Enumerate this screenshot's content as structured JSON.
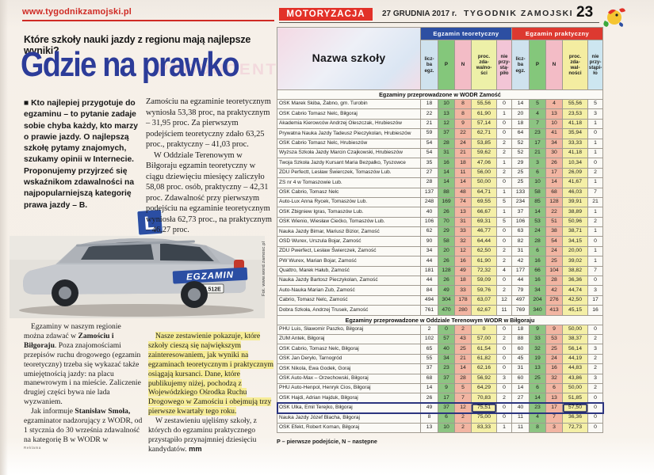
{
  "page": {
    "url": "www.tygodnikzamojski.pl",
    "section_label": "MOTORYZACJA",
    "date_line": "27 GRUDNIA 2017 r.",
    "paper_name": "TYGODNIK ZAMOJSKI",
    "page_number": "23"
  },
  "colors": {
    "accent_red": "#e23128",
    "headline_blue": "#2c3c99",
    "theory_header_blue": "#2d4fa2",
    "practical_header_red": "#dd3930",
    "cell_green": "#8cc482",
    "cell_salmon": "#f2b5a2",
    "cell_yellow": "#f4efa6",
    "highlight_outline": "#2c357f",
    "marker_yellow": "#f6ec96"
  },
  "article": {
    "kicker": "Które szkoły nauki jazdy z regionu mają najlepsze wyniki?",
    "headline": "Gdzie na prawko",
    "ghost_text": "PRODUCENT",
    "intro": "■ Kto najlepiej przygotuje do egzaminu – to pytanie zadaje sobie chyba każdy, kto marzy o prawie jazdy. O najlepszą szkołę pytamy znajomych, szukamy opinii w Internecie. Proponujemy przyjrzeć się wskaźnikom zdawalności na najpopularniejszą kategorię prawa jazdy – B.",
    "col2_p1": "Zamościu na egzaminie teoretycznym wyniosła 53,38 proc, na praktycznym – 31,95 proc. Za pierwszym podejściem teoretyczny zdało 63,25 proc., praktyczny – 41,03 proc.",
    "col2_p2": "W Oddziale Terenowym w Biłgoraju egzamin teoretyczny w ciągu dziewięciu miesięcy zaliczyło 58,08 proc. osób, praktyczny – 42,31 proc. Zdawalność przy pierwszym podejściu na egzaminie teoretycznym wyniosła 62,73 proc., na praktycznym – 46,27 proc.",
    "photo": {
      "egzamin_label": "EGZAMIN",
      "l_sign": "L",
      "plate": "LU 512E",
      "credit": "Fot. www.word.zamosc.pl"
    },
    "col3_p1_pre": "Egzaminy w naszym regionie można zdawać w ",
    "col3_p1_bold": "Zamościu i Biłgoraju",
    "col3_p1_post": ". Poza znajomościami przepisów ruchu drogowego (egzamin teoretyczny) trzeba się wykazać także umiejętnością jazdy: na placu manewrowym i na mieście. Zaliczenie drugiej części bywa nie lada wyzwaniem.",
    "col3_p2_pre": "Jak informuje ",
    "col3_p2_bold": "Stanisław Smoła,",
    "col3_p2_post": " egzaminator nadzorujący z WODR, od 1 stycznia do 30 września zdawalność na kategorię B w WODR w",
    "col4_p1": "Nasze zestawienie pokazuje, które szkoły cieszą się największym zainteresowaniem, jak wyniki na egzaminach teoretycznym i praktycznym osiągają kursanci. Dane, które publikujemy niżej, pochodzą z Wojewódzkiego Ośrodka Ruchu Drogowego w Zamościu i obejmują trzy pierwsze kwartały tego roku.",
    "col4_p2": "W zestawieniu ujęliśmy szkoły, z których do egzaminu praktycznego przystąpiło przynajmniej dziesięciu kandydatów. ",
    "byline": "mm",
    "reklama_label": "Reklama"
  },
  "table": {
    "name_header": "Nazwa szkoły",
    "group_theory": "Egzamin teoretyczny",
    "group_practical": "Egzamin praktyczny",
    "cols_t": [
      "licz-\nba\negz.",
      "P",
      "N",
      "proc.\nzda-\nwalno-\nści",
      "nie\nprzy-\nstą-\npiło"
    ],
    "cols_p": [
      "licz-\nba\negz.",
      "P",
      "N",
      "proc.\nzda-\nwal-\nności",
      "nie\nprzy-\nstąpi-\nło"
    ],
    "footnote": "P – pierwsze podejście, N – następne",
    "sections": [
      {
        "title": "Egzaminy przeprowadzone w WODR Zamość",
        "rows": [
          {
            "name": "OSK Marek Skiba, Żabno, gm. Turobin",
            "values": [
              "18",
              "10",
              "8",
              "55,56",
              "0",
              "14",
              "5",
              "4",
              "55,56",
              "5"
            ]
          },
          {
            "name": "OSK Cabrio Tomasz Nelc, Biłgoraj",
            "values": [
              "22",
              "13",
              "8",
              "61,90",
              "1",
              "20",
              "4",
              "13",
              "23,53",
              "3"
            ]
          },
          {
            "name": "Akademia Kierowców Andrzej Oleszczak, Hrubieszów",
            "values": [
              "21",
              "12",
              "9",
              "57,14",
              "0",
              "18",
              "7",
              "10",
              "41,18",
              "1"
            ]
          },
          {
            "name": "Prywatna Nauka Jazdy Tadeusz Pieczykolan, Hrubieszów",
            "values": [
              "59",
              "37",
              "22",
              "62,71",
              "0",
              "64",
              "23",
              "41",
              "35,94",
              "0"
            ]
          },
          {
            "name": "OSK Cabrio Tomasz Nelc, Hrubieszów",
            "values": [
              "54",
              "28",
              "24",
              "53,85",
              "2",
              "52",
              "17",
              "34",
              "33,33",
              "1"
            ]
          },
          {
            "name": "Wyższa Szkoła Jazdy Marcin Czajkowski, Hrubieszów",
            "values": [
              "54",
              "31",
              "21",
              "59,62",
              "2",
              "52",
              "21",
              "30",
              "41,18",
              "1"
            ]
          },
          {
            "name": "Twoja Szkoła Jazdy Kursant Maria Bezpalko, Tyszowce",
            "values": [
              "35",
              "16",
              "18",
              "47,06",
              "1",
              "29",
              "3",
              "26",
              "10,34",
              "0"
            ]
          },
          {
            "name": "ZDU Perfectt, Lesław Świerczek, Tomaszów Lub.",
            "values": [
              "27",
              "14",
              "11",
              "56,00",
              "2",
              "25",
              "6",
              "17",
              "26,09",
              "2"
            ]
          },
          {
            "name": "ZS nr 4 w Tomaszowie Lub.",
            "values": [
              "28",
              "14",
              "14",
              "50,00",
              "0",
              "25",
              "10",
              "14",
              "41,67",
              "1"
            ]
          },
          {
            "name": "OSK Cabrio, Tomasz Nelc",
            "values": [
              "137",
              "88",
              "48",
              "64,71",
              "1",
              "133",
              "58",
              "68",
              "46,03",
              "7"
            ]
          },
          {
            "name": "Auto-Lux Anna Rycek, Tomaszów Lub.",
            "values": [
              "248",
              "169",
              "74",
              "69,55",
              "5",
              "234",
              "85",
              "128",
              "39,91",
              "21"
            ]
          },
          {
            "name": "OSK Zbigniew Igras, Tomaszów Lub.",
            "values": [
              "40",
              "26",
              "13",
              "66,67",
              "1",
              "37",
              "14",
              "22",
              "38,89",
              "1"
            ]
          },
          {
            "name": "OSK Wienio, Wiesław Ciećko, Tomaszów Lub.",
            "values": [
              "106",
              "70",
              "31",
              "69,31",
              "5",
              "106",
              "53",
              "51",
              "50,96",
              "2"
            ]
          },
          {
            "name": "Nauka Jazdy Bimar, Mariusz Bizior, Zamość",
            "values": [
              "62",
              "29",
              "33",
              "46,77",
              "0",
              "63",
              "24",
              "38",
              "38,71",
              "1"
            ]
          },
          {
            "name": "OSD Wurex, Urszula Bojar, Zamość",
            "values": [
              "90",
              "58",
              "32",
              "64,44",
              "0",
              "82",
              "28",
              "54",
              "34,15",
              "0"
            ]
          },
          {
            "name": "ZDU Pwerfect, Lesław Świerczek, Zamość",
            "values": [
              "34",
              "20",
              "12",
              "62,50",
              "2",
              "31",
              "6",
              "24",
              "20,00",
              "1"
            ]
          },
          {
            "name": "PW Wurex, Marian Bojar, Zamość",
            "values": [
              "44",
              "26",
              "16",
              "61,90",
              "2",
              "42",
              "16",
              "25",
              "39,02",
              "1"
            ]
          },
          {
            "name": "Quattro, Marek Hałub, Zamość",
            "values": [
              "181",
              "128",
              "49",
              "72,32",
              "4",
              "177",
              "66",
              "104",
              "38,82",
              "7"
            ]
          },
          {
            "name": "Nauka Jazdy Bartosz Pieczykolan, Zamość",
            "values": [
              "44",
              "26",
              "18",
              "59,09",
              "0",
              "44",
              "16",
              "28",
              "36,36",
              "0"
            ]
          },
          {
            "name": "Auto-Nauka Marian Zub, Zamość",
            "values": [
              "84",
              "49",
              "33",
              "59,76",
              "2",
              "79",
              "34",
              "42",
              "44,74",
              "3"
            ]
          },
          {
            "name": "Cabrio, Tomasz Nelc, Zamość",
            "values": [
              "494",
              "304",
              "178",
              "63,07",
              "12",
              "497",
              "204",
              "276",
              "42,50",
              "17"
            ]
          },
          {
            "name": "Dobra Szkoła, Andrzej Trusek, Zamość",
            "values": [
              "761",
              "470",
              "280",
              "62,67",
              "11",
              "769",
              "340",
              "413",
              "45,15",
              "16"
            ]
          }
        ]
      },
      {
        "title": "Egzaminy przeprowadzone w Oddziale Terenowym WODR w Biłgoraju",
        "rows": [
          {
            "name": "PHU Luis, Sławomir Paszko, Biłgoraj",
            "values": [
              "2",
              "0",
              "2",
              "0",
              "0",
              "18",
              "9",
              "9",
              "50,00",
              "0"
            ]
          },
          {
            "name": "ZUM Antek, Biłgoraj",
            "values": [
              "102",
              "57",
              "43",
              "57,00",
              "2",
              "88",
              "33",
              "53",
              "38,37",
              "2"
            ]
          },
          {
            "name": "OSK Cabrio, Tomasz Nelc, Biłgoraj",
            "values": [
              "65",
              "40",
              "25",
              "61,54",
              "0",
              "60",
              "32",
              "25",
              "56,14",
              "3"
            ]
          },
          {
            "name": "OSK Jan Deryło, Tarnogród",
            "values": [
              "55",
              "34",
              "21",
              "61,82",
              "0",
              "45",
              "19",
              "24",
              "44,19",
              "2"
            ]
          },
          {
            "name": "OSK Nikola, Ewa Godek, Goraj",
            "values": [
              "37",
              "23",
              "14",
              "62,16",
              "0",
              "31",
              "13",
              "16",
              "44,83",
              "2"
            ]
          },
          {
            "name": "OSK Auto-Max – Orzechowski, Biłgoraj",
            "values": [
              "68",
              "37",
              "28",
              "56,92",
              "3",
              "60",
              "25",
              "32",
              "43,86",
              "3"
            ]
          },
          {
            "name": "PHU Auto-Henpol, Henryk Cios, Biłgoraj",
            "values": [
              "14",
              "9",
              "5",
              "64,29",
              "0",
              "14",
              "6",
              "6",
              "50,00",
              "2"
            ]
          },
          {
            "name": "OSK Hajdi, Adrian Hajduk, Biłgoraj",
            "values": [
              "26",
              "17",
              "7",
              "70,83",
              "2",
              "27",
              "14",
              "13",
              "51,85",
              "0"
            ]
          },
          {
            "name": "OSK Ulka, Emil Terejko, Biłgoraj",
            "values": [
              "49",
              "37",
              "12",
              "75,51",
              "0",
              "40",
              "23",
              "17",
              "57,50",
              "0"
            ],
            "highlight": true
          },
          {
            "name": "Nauka Jazdy Józef Blacha, Biłgoraj",
            "values": [
              "8",
              "6",
              "2",
              "75,00",
              "0",
              "11",
              "4",
              "7",
              "36,36",
              "0"
            ]
          },
          {
            "name": "OSK Efekt, Robert Koman, Biłgoraj",
            "values": [
              "13",
              "10",
              "2",
              "83,33",
              "1",
              "11",
              "8",
              "3",
              "72,73",
              "0"
            ]
          }
        ]
      }
    ]
  }
}
